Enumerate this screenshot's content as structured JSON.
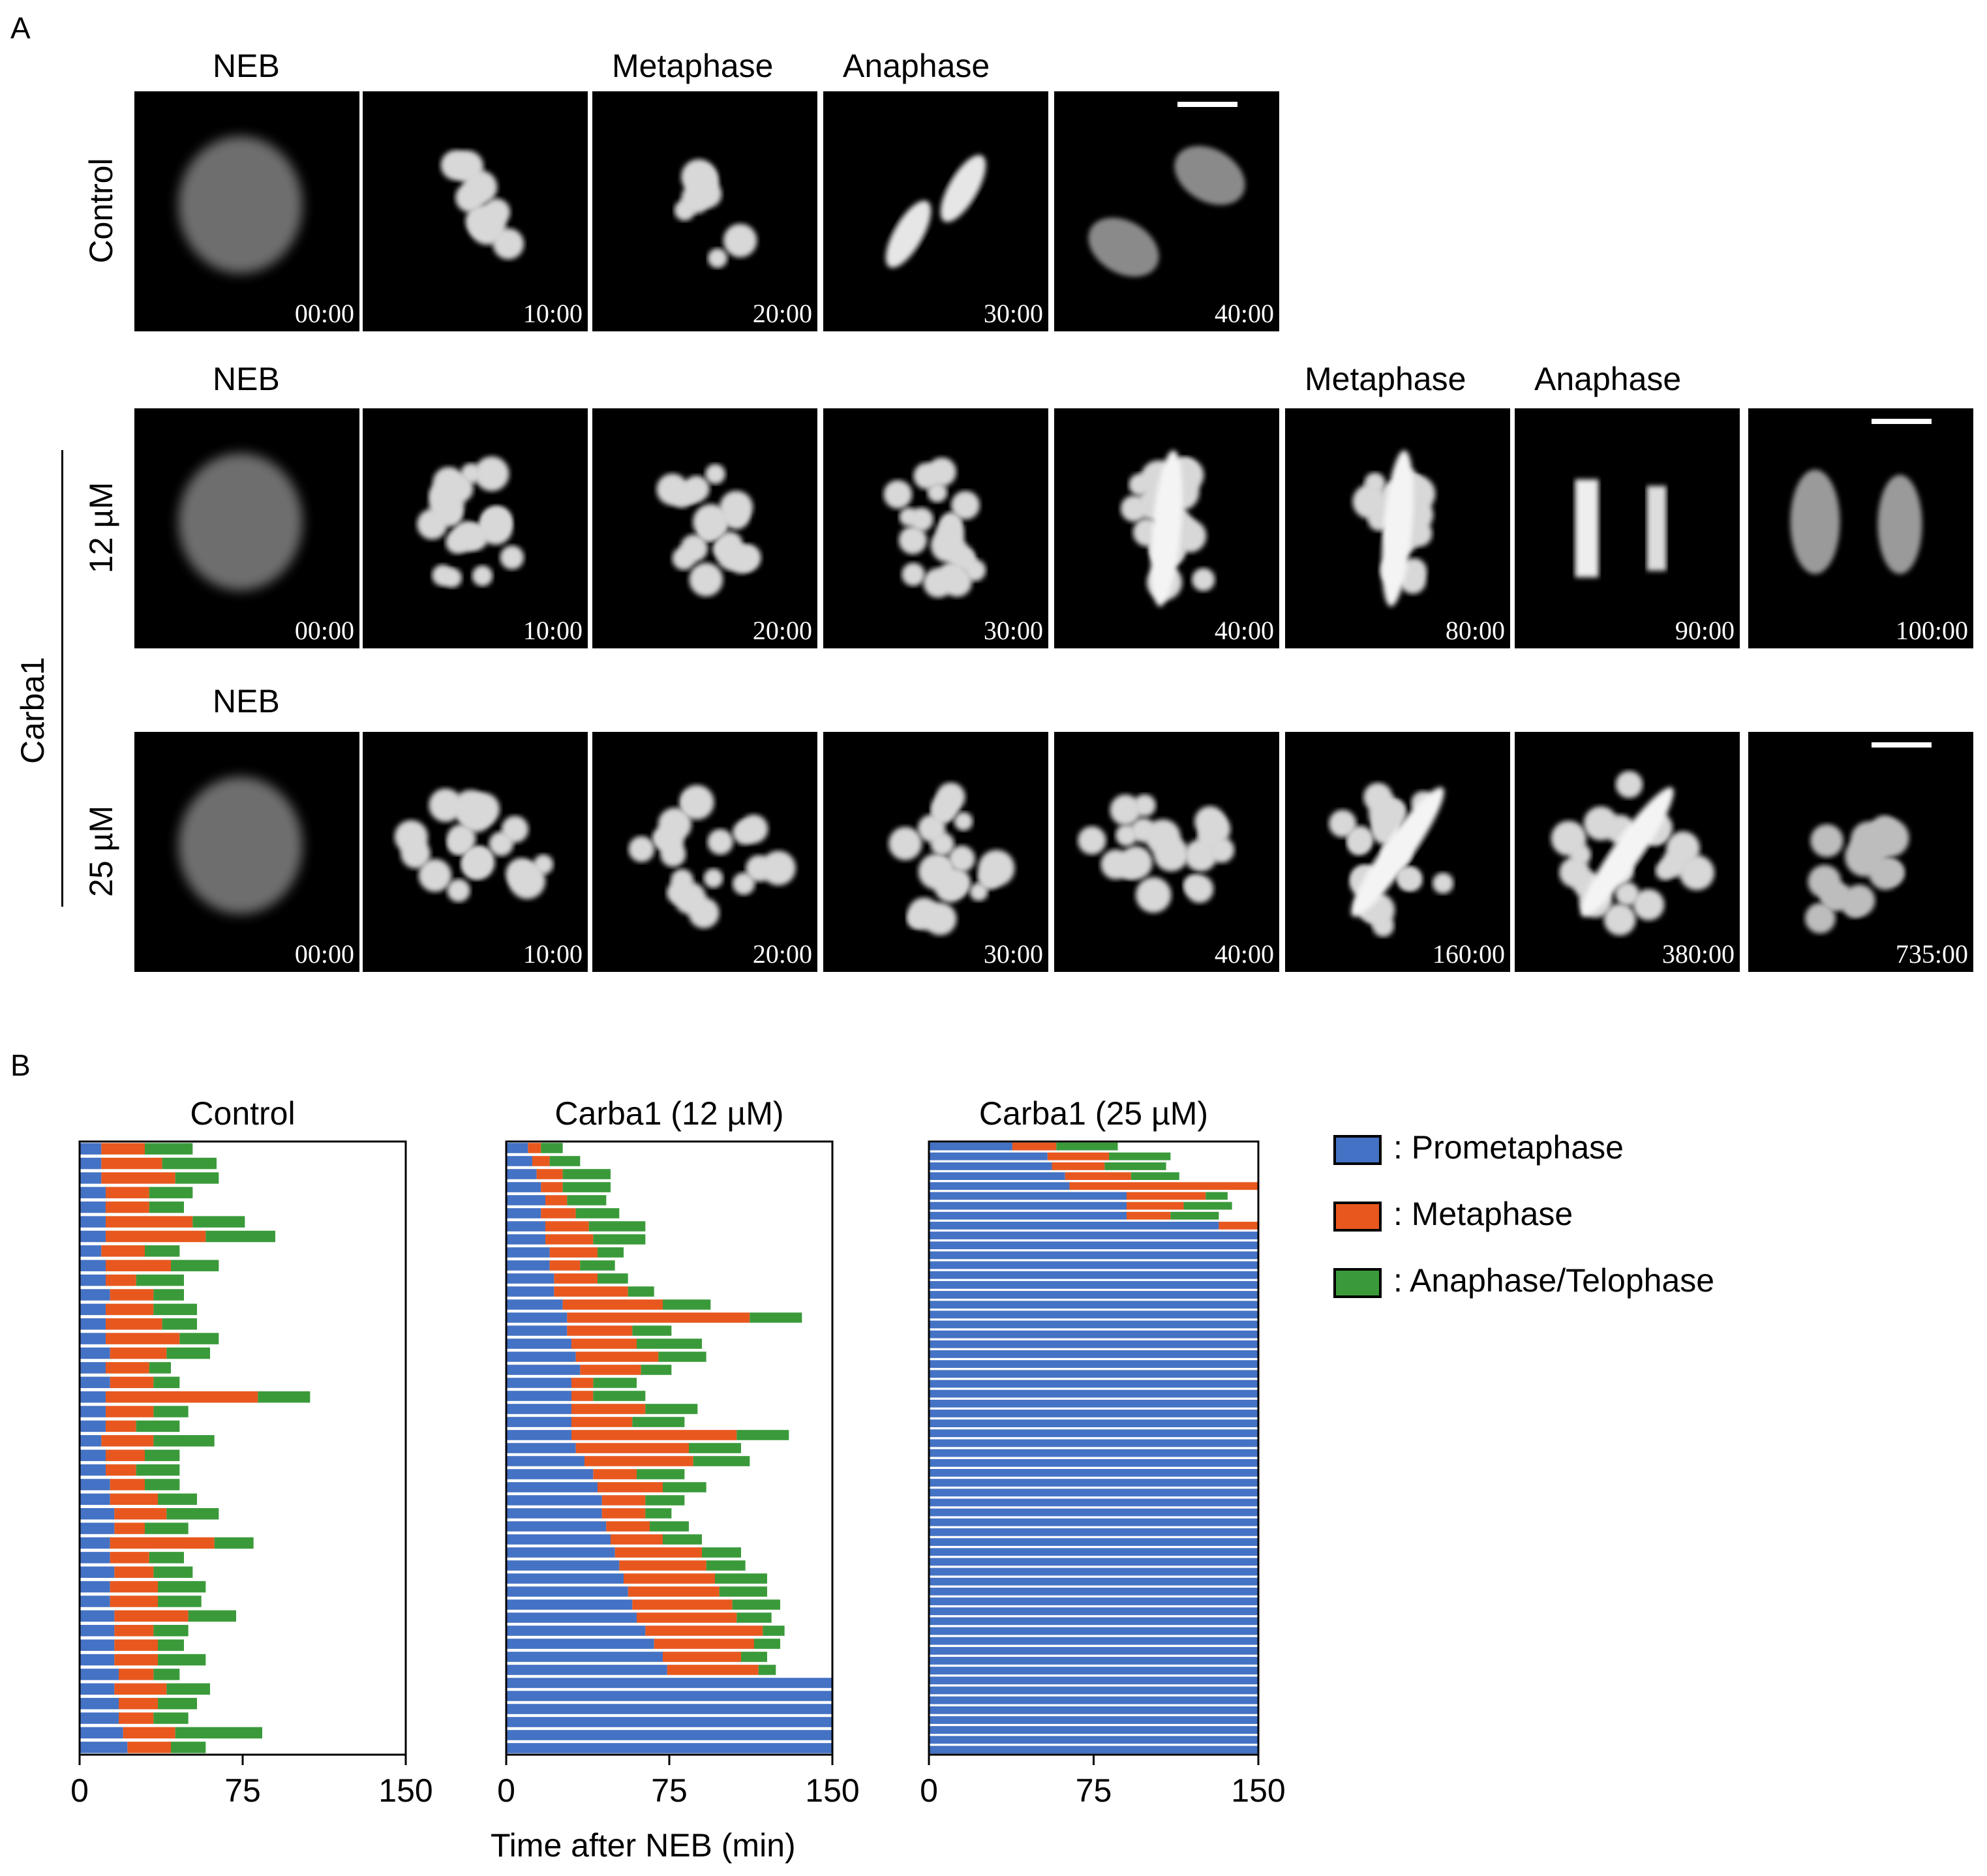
{
  "panel_a": {
    "label": "A",
    "rows": [
      {
        "label": "Control",
        "stages": [
          {
            "text": "NEB",
            "col": 0
          },
          {
            "text": "Metaphase",
            "col": 2
          },
          {
            "text": "Anaphase",
            "col": 3
          }
        ],
        "frames": [
          "00:00",
          "10:00",
          "20:00",
          "30:00",
          "40:00"
        ]
      },
      {
        "label": "12 µM",
        "stages": [
          {
            "text": "NEB",
            "col": 0
          },
          {
            "text": "Metaphase",
            "col": 5
          },
          {
            "text": "Anaphase",
            "col": 6
          }
        ],
        "frames": [
          "00:00",
          "10:00",
          "20:00",
          "30:00",
          "40:00",
          "80:00",
          "90:00",
          "100:00"
        ]
      },
      {
        "label": "25 µM",
        "stages": [
          {
            "text": "NEB",
            "col": 0
          }
        ],
        "frames": [
          "00:00",
          "10:00",
          "20:00",
          "30:00",
          "40:00",
          "160:00",
          "380:00",
          "735:00"
        ]
      }
    ],
    "group_label": "Carba1"
  },
  "panel_b": {
    "label": "B",
    "x_axis_label": "Time after NEB (min)",
    "legend": [
      {
        "label": ": Prometaphase",
        "color": "#4472C4"
      },
      {
        "label": ": Metaphase",
        "color": "#E8581E"
      },
      {
        "label": ": Anaphase/Telophase",
        "color": "#3A9A3A"
      }
    ]
  },
  "chart_data": [
    {
      "type": "bar",
      "orientation": "horizontal-stacked",
      "title": "Control",
      "xlim": [
        0,
        150
      ],
      "xticks": [
        "0",
        "75",
        "150"
      ],
      "series_names": [
        "Prometaphase",
        "Metaphase",
        "Anaphase/Telophase"
      ],
      "cells": [
        [
          10,
          20,
          22
        ],
        [
          10,
          28,
          25
        ],
        [
          10,
          34,
          20
        ],
        [
          12,
          20,
          20
        ],
        [
          12,
          20,
          16
        ],
        [
          12,
          40,
          24
        ],
        [
          12,
          46,
          32
        ],
        [
          10,
          20,
          16
        ],
        [
          12,
          30,
          22
        ],
        [
          12,
          14,
          22
        ],
        [
          14,
          20,
          14
        ],
        [
          12,
          22,
          20
        ],
        [
          12,
          26,
          16
        ],
        [
          12,
          34,
          18
        ],
        [
          14,
          26,
          20
        ],
        [
          12,
          20,
          10
        ],
        [
          14,
          20,
          12
        ],
        [
          12,
          70,
          24
        ],
        [
          12,
          22,
          16
        ],
        [
          12,
          14,
          20
        ],
        [
          10,
          24,
          28
        ],
        [
          12,
          18,
          16
        ],
        [
          12,
          14,
          20
        ],
        [
          14,
          16,
          16
        ],
        [
          14,
          22,
          18
        ],
        [
          16,
          24,
          24
        ],
        [
          16,
          14,
          20
        ],
        [
          14,
          48,
          18
        ],
        [
          14,
          18,
          16
        ],
        [
          16,
          18,
          18
        ],
        [
          14,
          22,
          22
        ],
        [
          14,
          22,
          20
        ],
        [
          16,
          34,
          22
        ],
        [
          16,
          18,
          16
        ],
        [
          16,
          20,
          12
        ],
        [
          16,
          20,
          22
        ],
        [
          18,
          16,
          12
        ],
        [
          16,
          24,
          20
        ],
        [
          18,
          18,
          18
        ],
        [
          18,
          16,
          16
        ],
        [
          20,
          24,
          40
        ],
        [
          22,
          20,
          16
        ]
      ]
    },
    {
      "type": "bar",
      "orientation": "horizontal-stacked",
      "title": "Carba1 (12 µM)",
      "xlim": [
        0,
        150
      ],
      "xticks": [
        "0",
        "75",
        "150"
      ],
      "series_names": [
        "Prometaphase",
        "Metaphase",
        "Anaphase/Telophase"
      ],
      "cells": [
        [
          10,
          6,
          10
        ],
        [
          12,
          8,
          14
        ],
        [
          14,
          12,
          22
        ],
        [
          16,
          10,
          22
        ],
        [
          18,
          10,
          18
        ],
        [
          16,
          16,
          20
        ],
        [
          18,
          20,
          26
        ],
        [
          18,
          22,
          24
        ],
        [
          20,
          22,
          12
        ],
        [
          20,
          14,
          16
        ],
        [
          22,
          20,
          14
        ],
        [
          22,
          34,
          12
        ],
        [
          26,
          46,
          22
        ],
        [
          28,
          84,
          24
        ],
        [
          28,
          30,
          18
        ],
        [
          30,
          30,
          30
        ],
        [
          32,
          38,
          22
        ],
        [
          34,
          28,
          14
        ],
        [
          30,
          10,
          20
        ],
        [
          30,
          10,
          24
        ],
        [
          30,
          34,
          24
        ],
        [
          30,
          28,
          24
        ],
        [
          30,
          76,
          24
        ],
        [
          32,
          52,
          24
        ],
        [
          36,
          50,
          26
        ],
        [
          40,
          20,
          22
        ],
        [
          42,
          30,
          20
        ],
        [
          44,
          20,
          18
        ],
        [
          44,
          20,
          12
        ],
        [
          46,
          20,
          18
        ],
        [
          48,
          24,
          18
        ],
        [
          50,
          40,
          18
        ],
        [
          52,
          40,
          18
        ],
        [
          54,
          42,
          24
        ],
        [
          56,
          42,
          22
        ],
        [
          58,
          46,
          22
        ],
        [
          60,
          46,
          16
        ],
        [
          64,
          54,
          10
        ],
        [
          68,
          46,
          12
        ],
        [
          72,
          36,
          12
        ],
        [
          74,
          42,
          8
        ],
        [
          150,
          0,
          0
        ],
        [
          150,
          0,
          0
        ],
        [
          150,
          0,
          0
        ],
        [
          150,
          0,
          0
        ],
        [
          150,
          0,
          0
        ],
        [
          150,
          0,
          0
        ]
      ]
    },
    {
      "type": "bar",
      "orientation": "horizontal-stacked",
      "title": "Carba1 (25 µM)",
      "xlim": [
        0,
        150
      ],
      "xticks": [
        "0",
        "75",
        "150"
      ],
      "series_names": [
        "Prometaphase",
        "Metaphase",
        "Anaphase/Telophase"
      ],
      "cells": [
        [
          38,
          20,
          28
        ],
        [
          54,
          28,
          28
        ],
        [
          56,
          24,
          28
        ],
        [
          62,
          30,
          22
        ],
        [
          64,
          86,
          0
        ],
        [
          90,
          36,
          10
        ],
        [
          90,
          26,
          22
        ],
        [
          90,
          20,
          22
        ],
        [
          132,
          18,
          0
        ],
        [
          150,
          0,
          0
        ],
        [
          150,
          0,
          0
        ],
        [
          150,
          0,
          0
        ],
        [
          150,
          0,
          0
        ],
        [
          150,
          0,
          0
        ],
        [
          150,
          0,
          0
        ],
        [
          150,
          0,
          0
        ],
        [
          150,
          0,
          0
        ],
        [
          150,
          0,
          0
        ],
        [
          150,
          0,
          0
        ],
        [
          150,
          0,
          0
        ],
        [
          150,
          0,
          0
        ],
        [
          150,
          0,
          0
        ],
        [
          150,
          0,
          0
        ],
        [
          150,
          0,
          0
        ],
        [
          150,
          0,
          0
        ],
        [
          150,
          0,
          0
        ],
        [
          150,
          0,
          0
        ],
        [
          150,
          0,
          0
        ],
        [
          150,
          0,
          0
        ],
        [
          150,
          0,
          0
        ],
        [
          150,
          0,
          0
        ],
        [
          150,
          0,
          0
        ],
        [
          150,
          0,
          0
        ],
        [
          150,
          0,
          0
        ],
        [
          150,
          0,
          0
        ],
        [
          150,
          0,
          0
        ],
        [
          150,
          0,
          0
        ],
        [
          150,
          0,
          0
        ],
        [
          150,
          0,
          0
        ],
        [
          150,
          0,
          0
        ],
        [
          150,
          0,
          0
        ],
        [
          150,
          0,
          0
        ],
        [
          150,
          0,
          0
        ],
        [
          150,
          0,
          0
        ],
        [
          150,
          0,
          0
        ],
        [
          150,
          0,
          0
        ],
        [
          150,
          0,
          0
        ],
        [
          150,
          0,
          0
        ],
        [
          150,
          0,
          0
        ],
        [
          150,
          0,
          0
        ],
        [
          150,
          0,
          0
        ],
        [
          150,
          0,
          0
        ],
        [
          150,
          0,
          0
        ],
        [
          150,
          0,
          0
        ],
        [
          150,
          0,
          0
        ],
        [
          150,
          0,
          0
        ],
        [
          150,
          0,
          0
        ],
        [
          150,
          0,
          0
        ],
        [
          150,
          0,
          0
        ],
        [
          150,
          0,
          0
        ],
        [
          150,
          0,
          0
        ],
        [
          150,
          0,
          0
        ]
      ]
    }
  ]
}
